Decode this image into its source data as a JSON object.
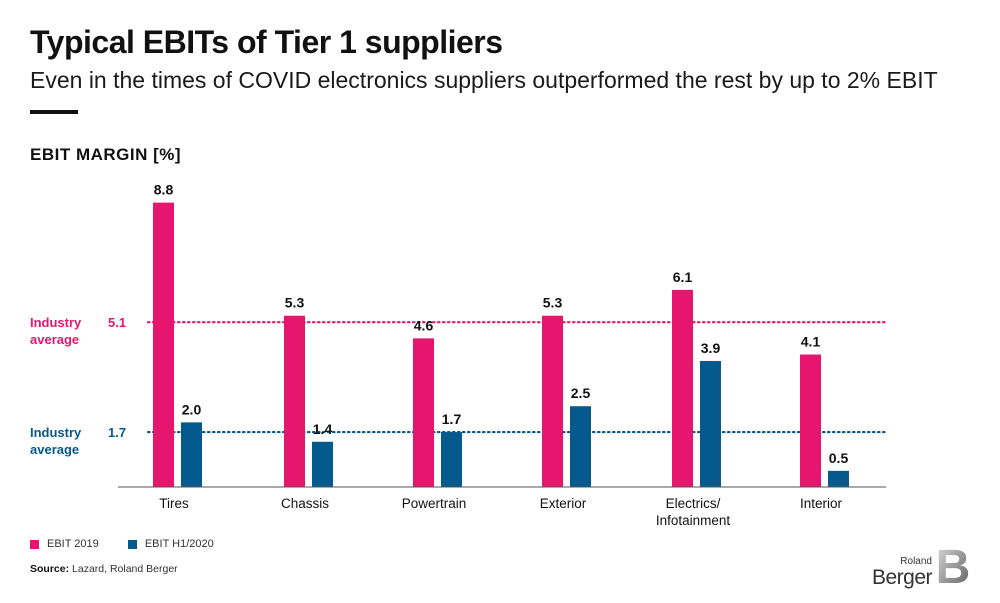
{
  "title": "Typical EBITs of Tier 1 suppliers",
  "subtitle": "Even in the times of COVID electronics suppliers outperformed the rest by up to 2% EBIT",
  "chart_label": "EBIT MARGIN [%]",
  "colors": {
    "ebit2019": "#e6166e",
    "ebitH12020": "#045a8d",
    "axis": "#555555"
  },
  "chart_data": {
    "type": "bar",
    "categories": [
      "Tires",
      "Chassis",
      "Powertrain",
      "Exterior",
      "Electrics/\nInfotainment",
      "Interior"
    ],
    "series": [
      {
        "name": "EBIT 2019",
        "values": [
          8.8,
          5.3,
          4.6,
          5.3,
          6.1,
          4.1
        ]
      },
      {
        "name": "EBIT H1/2020",
        "values": [
          2.0,
          1.4,
          1.7,
          2.5,
          3.9,
          0.5
        ]
      }
    ],
    "ylim": [
      0,
      9.5
    ],
    "reference_lines": [
      {
        "label": "Industry\naverage",
        "value": 5.1,
        "value_label": "5.1",
        "series": "EBIT 2019"
      },
      {
        "label": "Industry\naverage",
        "value": 1.7,
        "value_label": "1.7",
        "series": "EBIT H1/2020"
      }
    ]
  },
  "legend": {
    "item1": "EBIT 2019",
    "item2": "EBIT H1/2020"
  },
  "source": {
    "label": "Source:",
    "text": " Lazard, Roland Berger"
  },
  "logo": {
    "small": "Roland",
    "big": "Berger",
    "mark": "B"
  }
}
